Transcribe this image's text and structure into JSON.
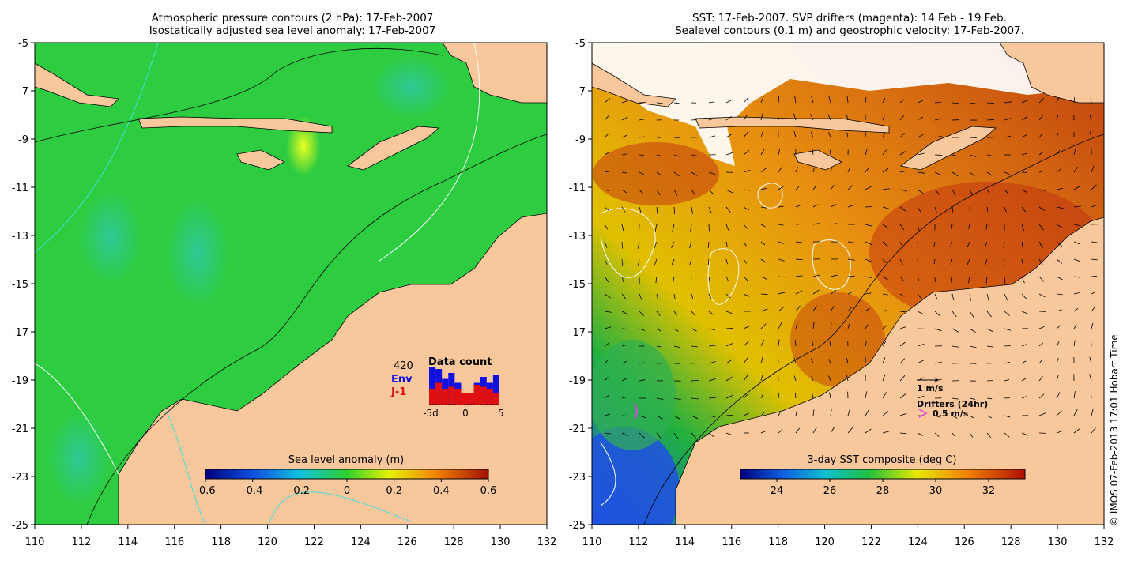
{
  "left_panel": {
    "title_line1": "Atmospheric pressure contours (2 hPa): 17-Feb-2007",
    "title_line2": "Isostatically adjusted sea level anomaly: 17-Feb-2007",
    "colorbar_title": "Sea level anomaly (m)",
    "colorbar_ticks": [
      "-0.6",
      "-0.4",
      "-0.2",
      "0",
      "0.2",
      "0.4",
      "0.6"
    ],
    "inset": {
      "total": "420",
      "env_label": "Env",
      "j1_label": "J-1",
      "title": "Data count",
      "axis_labels": [
        "-5d",
        "0",
        "5"
      ],
      "colors": {
        "env": "#1010e0",
        "j1": "#e01010"
      },
      "env_values": [
        0.95,
        0.9,
        0.65,
        0.8,
        0.55,
        0.3,
        0.3,
        0.55,
        0.7,
        0.55,
        0.75
      ],
      "j1_values": [
        0.4,
        0.55,
        0.4,
        0.45,
        0.4,
        0.3,
        0.3,
        0.5,
        0.45,
        0.4,
        0.3
      ]
    }
  },
  "right_panel": {
    "title_line1": "SST: 17-Feb-2007. SVP drifters (magenta): 14 Feb - 19 Feb.",
    "title_line2": "Sealevel contours (0.1 m) and geostrophic velocity: 17-Feb-2007.",
    "colorbar_title": "3-day SST composite (deg C)",
    "colorbar_ticks": [
      "24",
      "26",
      "28",
      "30",
      "32"
    ],
    "velocity_scale_label": "1 m/s",
    "drifters_label": "Drifters (24hr)",
    "drifter_scale_label": "0.5 m/s",
    "drifter_color": "#e040e0"
  },
  "axes": {
    "x_ticks": [
      "110",
      "112",
      "114",
      "116",
      "118",
      "120",
      "122",
      "124",
      "126",
      "128",
      "130",
      "132"
    ],
    "y_ticks": [
      "-5",
      "-7",
      "-9",
      "-11",
      "-13",
      "-15",
      "-17",
      "-19",
      "-21",
      "-23",
      "-25"
    ]
  },
  "colors": {
    "land": "#f8c89c",
    "ocean_left": "#2ecc40",
    "cloud": "#ffffff"
  },
  "credit": "© IMOS 07-Feb-2013 17:01 Hobart Time"
}
